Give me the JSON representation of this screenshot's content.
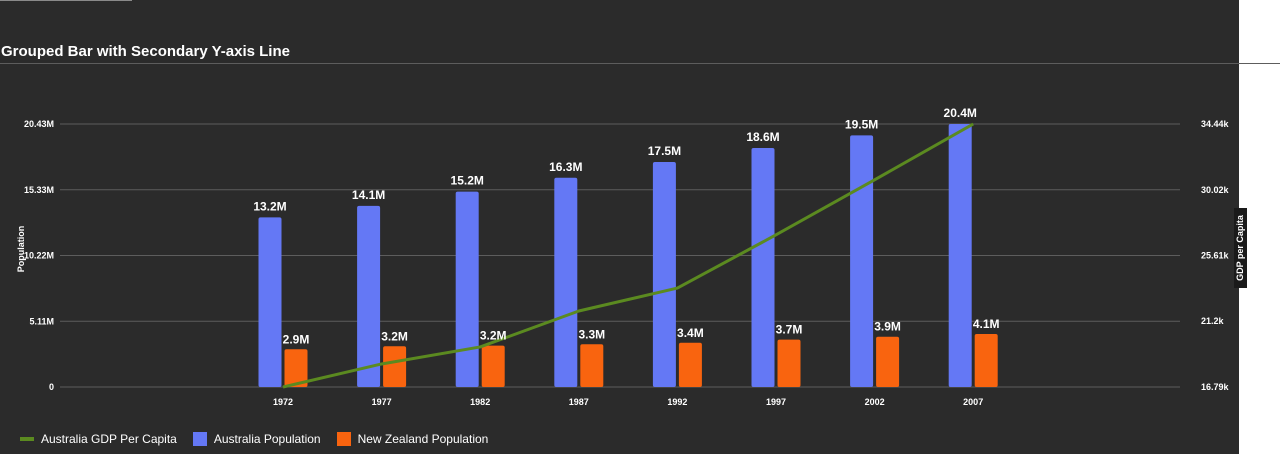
{
  "chart_data": {
    "type": "bar",
    "title": "Grouped Bar with Secondary Y-axis Line",
    "categories": [
      "1972",
      "1977",
      "1982",
      "1987",
      "1992",
      "1997",
      "2002",
      "2007"
    ],
    "series": [
      {
        "name": "Australia Population",
        "kind": "bar",
        "axis": "left",
        "color": "#6478f5",
        "values": [
          13177000,
          14074100,
          15184200,
          16257249,
          17481977,
          18565243,
          19546792,
          20434176
        ],
        "data_labels": [
          "13.2M",
          "14.1M",
          "15.2M",
          "16.3M",
          "17.5M",
          "18.6M",
          "19.5M",
          "20.4M"
        ]
      },
      {
        "name": "New Zealand Population",
        "kind": "bar",
        "axis": "left",
        "color": "#f9640f",
        "values": [
          2929100,
          3164900,
          3210650,
          3317166,
          3437674,
          3676187,
          3908037,
          4115771
        ],
        "data_labels": [
          "2.9M",
          "3.2M",
          "3.2M",
          "3.3M",
          "3.4M",
          "3.7M",
          "3.9M",
          "4.1M"
        ]
      },
      {
        "name": "Australia GDP Per Capita",
        "kind": "line",
        "axis": "right",
        "color": "#5b8a20",
        "values": [
          16789,
          18334,
          19477,
          21889,
          23425,
          26998,
          30688,
          34436
        ]
      }
    ],
    "y_left": {
      "label": "Population",
      "ylim": [
        0,
        20434176
      ],
      "ticks": [
        0,
        5108544,
        10217088,
        15325632,
        20434176
      ],
      "tick_labels": [
        "0",
        "5.11M",
        "10.22M",
        "15.33M",
        "20.43M"
      ]
    },
    "y_right": {
      "label": "GDP per Capita",
      "ylim": [
        16789,
        34436
      ],
      "ticks": [
        16789,
        21201,
        25613,
        30024,
        34436
      ],
      "tick_labels": [
        "16.79k",
        "21.2k",
        "25.61k",
        "30.02k",
        "34.44k"
      ]
    },
    "grid": true,
    "legend_position": "bottom-left",
    "legend_order": [
      "Australia GDP Per Capita",
      "Australia Population",
      "New Zealand Population"
    ]
  },
  "colors": {
    "background": "#2b2b2b",
    "grid": "#5d5d5d",
    "text": "#ffffff"
  }
}
